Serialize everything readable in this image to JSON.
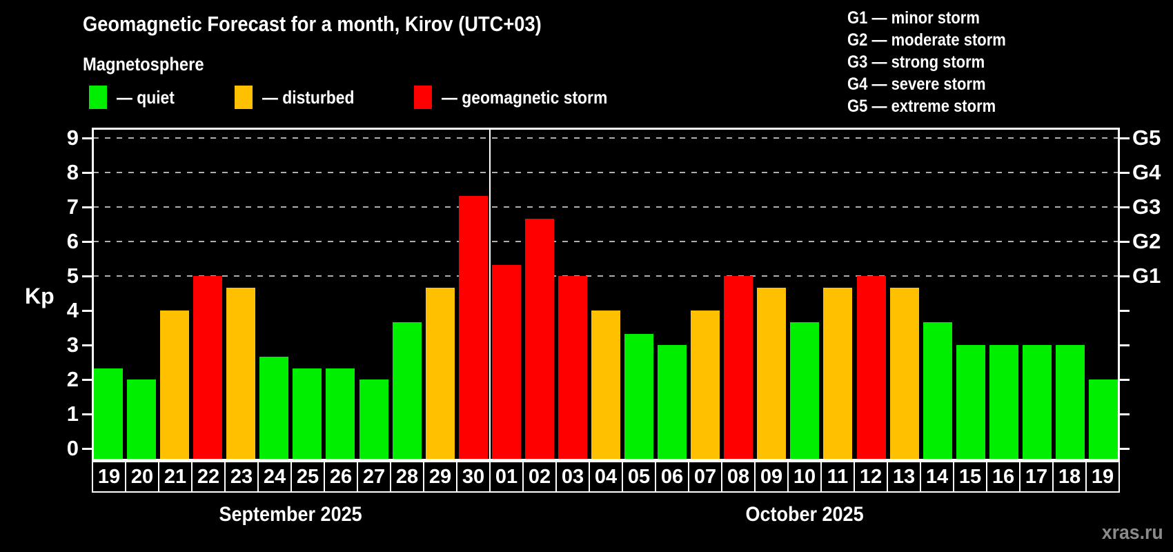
{
  "chart_data": {
    "type": "bar",
    "title": "Geomagnetic Forecast for a month, Kirov (UTC+03)",
    "subtitle": "Magnetosphere",
    "ylabel": "Kp",
    "ylim": [
      0,
      9.3
    ],
    "yticks": [
      0,
      1,
      2,
      3,
      4,
      5,
      6,
      7,
      8,
      9
    ],
    "grid_kp": [
      5,
      6,
      7,
      8,
      9
    ],
    "grid_style": "dashed",
    "legend_position": "top",
    "g_levels": [
      {
        "label": "G1",
        "kp": 5
      },
      {
        "label": "G2",
        "kp": 6
      },
      {
        "label": "G3",
        "kp": 7
      },
      {
        "label": "G4",
        "kp": 8
      },
      {
        "label": "G5",
        "kp": 9
      }
    ],
    "groups": [
      {
        "label": "September 2025",
        "days": [
          {
            "day": "19",
            "kp": 2.33,
            "status": "quiet"
          },
          {
            "day": "20",
            "kp": 2.0,
            "status": "quiet"
          },
          {
            "day": "21",
            "kp": 4.0,
            "status": "disturbed"
          },
          {
            "day": "22",
            "kp": 5.0,
            "status": "storm"
          },
          {
            "day": "23",
            "kp": 4.67,
            "status": "disturbed"
          },
          {
            "day": "24",
            "kp": 2.67,
            "status": "quiet"
          },
          {
            "day": "25",
            "kp": 2.33,
            "status": "quiet"
          },
          {
            "day": "26",
            "kp": 2.33,
            "status": "quiet"
          },
          {
            "day": "27",
            "kp": 2.0,
            "status": "quiet"
          },
          {
            "day": "28",
            "kp": 3.67,
            "status": "quiet"
          },
          {
            "day": "29",
            "kp": 4.67,
            "status": "disturbed"
          },
          {
            "day": "30",
            "kp": 7.33,
            "status": "storm"
          }
        ]
      },
      {
        "label": "October 2025",
        "days": [
          {
            "day": "01",
            "kp": 5.33,
            "status": "storm"
          },
          {
            "day": "02",
            "kp": 6.67,
            "status": "storm"
          },
          {
            "day": "03",
            "kp": 5.0,
            "status": "storm"
          },
          {
            "day": "04",
            "kp": 4.0,
            "status": "disturbed"
          },
          {
            "day": "05",
            "kp": 3.33,
            "status": "quiet"
          },
          {
            "day": "06",
            "kp": 3.0,
            "status": "quiet"
          },
          {
            "day": "07",
            "kp": 4.0,
            "status": "disturbed"
          },
          {
            "day": "08",
            "kp": 5.0,
            "status": "storm"
          },
          {
            "day": "09",
            "kp": 4.67,
            "status": "disturbed"
          },
          {
            "day": "10",
            "kp": 3.67,
            "status": "quiet"
          },
          {
            "day": "11",
            "kp": 4.67,
            "status": "disturbed"
          },
          {
            "day": "12",
            "kp": 5.0,
            "status": "storm"
          },
          {
            "day": "13",
            "kp": 4.67,
            "status": "disturbed"
          },
          {
            "day": "14",
            "kp": 3.67,
            "status": "quiet"
          },
          {
            "day": "15",
            "kp": 3.0,
            "status": "quiet"
          },
          {
            "day": "16",
            "kp": 3.0,
            "status": "quiet"
          },
          {
            "day": "17",
            "kp": 3.0,
            "status": "quiet"
          },
          {
            "day": "18",
            "kp": 3.0,
            "status": "quiet"
          },
          {
            "day": "19",
            "kp": 2.0,
            "status": "quiet"
          }
        ]
      }
    ]
  },
  "legend": {
    "items": [
      {
        "label": "— quiet",
        "status": "quiet",
        "color": "#00ee00"
      },
      {
        "label": "— disturbed",
        "status": "disturbed",
        "color": "#ffc000"
      },
      {
        "label": "— geomagnetic storm",
        "status": "storm",
        "color": "#ff0000"
      }
    ]
  },
  "g_legend": {
    "items": [
      "G1 — minor storm",
      "G2 — moderate storm",
      "G3 — strong storm",
      "G4 — severe storm",
      "G5 — extreme storm"
    ]
  },
  "watermark": "xras.ru",
  "colors": {
    "background": "#000000",
    "text": "#ffffff",
    "frame": "#ffffff",
    "grid": "#b0b0b0",
    "watermark": "#8a8a8a"
  }
}
